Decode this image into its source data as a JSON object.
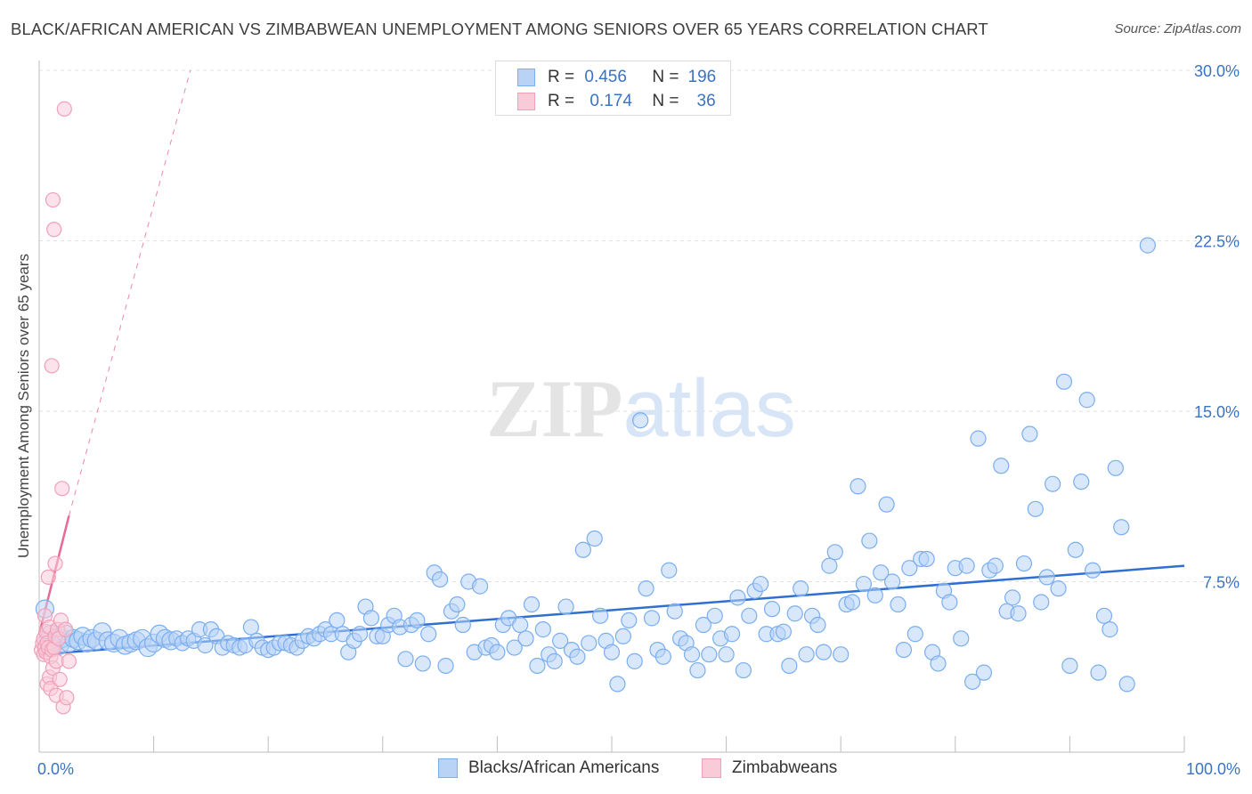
{
  "chart_data": {
    "type": "scatter",
    "title": "BLACK/AFRICAN AMERICAN VS ZIMBABWEAN UNEMPLOYMENT AMONG SENIORS OVER 65 YEARS CORRELATION CHART",
    "source": "Source: ZipAtlas.com",
    "xlabel": "",
    "ylabel": "Unemployment Among Seniors over 65 years",
    "xlim": [
      0,
      100
    ],
    "ylim": [
      0,
      30
    ],
    "x_tick_labels": [
      "0.0%",
      "100.0%"
    ],
    "y_ticks": [
      7.5,
      15.0,
      22.5,
      30.0
    ],
    "y_tick_labels": [
      "7.5%",
      "15.0%",
      "22.5%",
      "30.0%"
    ],
    "grid": true,
    "watermark": "ZIPatlas",
    "legend": {
      "placement": "top-center",
      "entries": [
        {
          "series": "Blacks/African Americans",
          "r_label": "R =",
          "r_value": "0.456",
          "n_label": "N =",
          "n_value": "196"
        },
        {
          "series": "Zimbabweans",
          "r_label": "R =",
          "r_value": "0.174",
          "n_label": "N =",
          "n_value": "36"
        }
      ]
    },
    "series": [
      {
        "name": "Blacks/African Americans",
        "color": "#7aaef0",
        "fill": "#b8d3f5",
        "trend": {
          "x": [
            0,
            100
          ],
          "y": [
            4.3,
            8.2
          ],
          "color": "#2f6fd1"
        },
        "points": [
          [
            0.5,
            6.3
          ],
          [
            0.8,
            4.9
          ],
          [
            1.0,
            5.2
          ],
          [
            1.2,
            4.8
          ],
          [
            1.5,
            5.0
          ],
          [
            1.8,
            4.7
          ],
          [
            2.0,
            5.0
          ],
          [
            2.3,
            5.2
          ],
          [
            2.6,
            4.8
          ],
          [
            3.0,
            5.0
          ],
          [
            3.4,
            4.9
          ],
          [
            3.8,
            5.1
          ],
          [
            4.2,
            4.8
          ],
          [
            4.6,
            5.0
          ],
          [
            5.0,
            4.9
          ],
          [
            5.5,
            5.3
          ],
          [
            6.0,
            4.9
          ],
          [
            6.5,
            4.8
          ],
          [
            7.0,
            5.0
          ],
          [
            7.5,
            4.7
          ],
          [
            8.0,
            4.8
          ],
          [
            8.5,
            4.9
          ],
          [
            9.0,
            5.0
          ],
          [
            9.5,
            4.6
          ],
          [
            10.0,
            4.8
          ],
          [
            10.5,
            5.2
          ],
          [
            11.0,
            5.0
          ],
          [
            11.5,
            4.9
          ],
          [
            12.0,
            5.0
          ],
          [
            12.5,
            4.8
          ],
          [
            13.0,
            5.0
          ],
          [
            13.5,
            4.9
          ],
          [
            14.0,
            5.4
          ],
          [
            14.5,
            4.7
          ],
          [
            15.0,
            5.4
          ],
          [
            15.5,
            5.1
          ],
          [
            16.0,
            4.6
          ],
          [
            16.5,
            4.8
          ],
          [
            17.0,
            4.7
          ],
          [
            17.5,
            4.6
          ],
          [
            18.0,
            4.7
          ],
          [
            18.5,
            5.5
          ],
          [
            19.0,
            4.9
          ],
          [
            19.5,
            4.6
          ],
          [
            20.0,
            4.5
          ],
          [
            20.5,
            4.6
          ],
          [
            21.0,
            4.8
          ],
          [
            21.5,
            4.8
          ],
          [
            22.0,
            4.7
          ],
          [
            22.5,
            4.6
          ],
          [
            23.0,
            4.9
          ],
          [
            23.5,
            5.1
          ],
          [
            24.0,
            5.0
          ],
          [
            24.5,
            5.2
          ],
          [
            25.0,
            5.4
          ],
          [
            25.5,
            5.2
          ],
          [
            26.0,
            5.8
          ],
          [
            26.5,
            5.2
          ],
          [
            27.0,
            4.4
          ],
          [
            27.5,
            4.9
          ],
          [
            28.0,
            5.2
          ],
          [
            28.5,
            6.4
          ],
          [
            29.0,
            5.9
          ],
          [
            29.5,
            5.1
          ],
          [
            30.0,
            5.1
          ],
          [
            30.5,
            5.6
          ],
          [
            31.0,
            6.0
          ],
          [
            31.5,
            5.5
          ],
          [
            32.0,
            4.1
          ],
          [
            32.5,
            5.6
          ],
          [
            33.0,
            5.8
          ],
          [
            33.5,
            3.9
          ],
          [
            34.0,
            5.2
          ],
          [
            34.5,
            7.9
          ],
          [
            35.0,
            7.6
          ],
          [
            35.5,
            3.8
          ],
          [
            36.0,
            6.2
          ],
          [
            36.5,
            6.5
          ],
          [
            37.0,
            5.6
          ],
          [
            37.5,
            7.5
          ],
          [
            38.0,
            4.4
          ],
          [
            38.5,
            7.3
          ],
          [
            39.0,
            4.6
          ],
          [
            39.5,
            4.7
          ],
          [
            40.0,
            4.4
          ],
          [
            40.5,
            5.6
          ],
          [
            41.0,
            5.9
          ],
          [
            41.5,
            4.6
          ],
          [
            42.0,
            5.6
          ],
          [
            42.5,
            5.0
          ],
          [
            43.0,
            6.5
          ],
          [
            43.5,
            3.8
          ],
          [
            44.0,
            5.4
          ],
          [
            44.5,
            4.3
          ],
          [
            45.0,
            4.0
          ],
          [
            45.5,
            4.9
          ],
          [
            46.0,
            6.4
          ],
          [
            46.5,
            4.5
          ],
          [
            47.0,
            4.2
          ],
          [
            47.5,
            8.9
          ],
          [
            48.0,
            4.8
          ],
          [
            48.5,
            9.4
          ],
          [
            49.0,
            6.0
          ],
          [
            49.5,
            4.9
          ],
          [
            50.0,
            4.4
          ],
          [
            50.5,
            3.0
          ],
          [
            51.0,
            5.1
          ],
          [
            51.5,
            5.8
          ],
          [
            52.0,
            4.0
          ],
          [
            52.5,
            14.6
          ],
          [
            53.0,
            7.2
          ],
          [
            53.5,
            5.9
          ],
          [
            54.0,
            4.5
          ],
          [
            54.5,
            4.2
          ],
          [
            55.0,
            8.0
          ],
          [
            55.5,
            6.2
          ],
          [
            56.0,
            5.0
          ],
          [
            56.5,
            4.8
          ],
          [
            57.0,
            4.3
          ],
          [
            57.5,
            3.6
          ],
          [
            58.0,
            5.6
          ],
          [
            58.5,
            4.3
          ],
          [
            59.0,
            6.0
          ],
          [
            59.5,
            5.0
          ],
          [
            60.0,
            4.3
          ],
          [
            60.5,
            5.2
          ],
          [
            61.0,
            6.8
          ],
          [
            61.5,
            3.6
          ],
          [
            62.0,
            6.0
          ],
          [
            62.5,
            7.1
          ],
          [
            63.0,
            7.4
          ],
          [
            63.5,
            5.2
          ],
          [
            64.0,
            6.3
          ],
          [
            64.5,
            5.2
          ],
          [
            65.0,
            5.3
          ],
          [
            65.5,
            3.8
          ],
          [
            66.0,
            6.1
          ],
          [
            66.5,
            7.2
          ],
          [
            67.0,
            4.3
          ],
          [
            67.5,
            6.0
          ],
          [
            68.0,
            5.6
          ],
          [
            68.5,
            4.4
          ],
          [
            69.0,
            8.2
          ],
          [
            69.5,
            8.8
          ],
          [
            70.0,
            4.3
          ],
          [
            70.5,
            6.5
          ],
          [
            71.0,
            6.6
          ],
          [
            71.5,
            11.7
          ],
          [
            72.0,
            7.4
          ],
          [
            72.5,
            9.3
          ],
          [
            73.0,
            6.9
          ],
          [
            73.5,
            7.9
          ],
          [
            74.0,
            10.9
          ],
          [
            74.5,
            7.5
          ],
          [
            75.0,
            6.5
          ],
          [
            75.5,
            4.5
          ],
          [
            76.0,
            8.1
          ],
          [
            76.5,
            5.2
          ],
          [
            77.0,
            8.5
          ],
          [
            77.5,
            8.5
          ],
          [
            78.0,
            4.4
          ],
          [
            78.5,
            3.9
          ],
          [
            79.0,
            7.1
          ],
          [
            79.5,
            6.6
          ],
          [
            80.0,
            8.1
          ],
          [
            80.5,
            5.0
          ],
          [
            81.0,
            8.2
          ],
          [
            81.5,
            3.1
          ],
          [
            82.0,
            13.8
          ],
          [
            82.5,
            3.5
          ],
          [
            83.0,
            8.0
          ],
          [
            83.5,
            8.2
          ],
          [
            84.0,
            12.6
          ],
          [
            84.5,
            6.2
          ],
          [
            85.0,
            6.8
          ],
          [
            85.5,
            6.1
          ],
          [
            86.0,
            8.3
          ],
          [
            86.5,
            14.0
          ],
          [
            87.0,
            10.7
          ],
          [
            87.5,
            6.6
          ],
          [
            88.0,
            7.7
          ],
          [
            88.5,
            11.8
          ],
          [
            89.0,
            7.2
          ],
          [
            89.5,
            16.3
          ],
          [
            90.0,
            3.8
          ],
          [
            90.5,
            8.9
          ],
          [
            91.0,
            11.9
          ],
          [
            91.5,
            15.5
          ],
          [
            92.0,
            8.0
          ],
          [
            92.5,
            3.5
          ],
          [
            93.0,
            6.0
          ],
          [
            93.5,
            5.4
          ],
          [
            94.0,
            12.5
          ],
          [
            94.5,
            9.9
          ],
          [
            95.0,
            3.0
          ],
          [
            96.8,
            22.3
          ]
        ]
      },
      {
        "name": "Zimbabweans",
        "color": "#f0a0b8",
        "fill": "#f9cad8",
        "trend": {
          "x": [
            0,
            2.6
          ],
          "y": [
            5.2,
            10.4
          ],
          "color": "#e86a92",
          "dashed_extension_to": [
            13.2,
            30.0
          ]
        },
        "points": [
          [
            0.2,
            4.5
          ],
          [
            0.3,
            4.8
          ],
          [
            0.4,
            5.0
          ],
          [
            0.4,
            4.3
          ],
          [
            0.5,
            4.6
          ],
          [
            0.5,
            6.0
          ],
          [
            0.6,
            4.4
          ],
          [
            0.6,
            5.3
          ],
          [
            0.7,
            4.8
          ],
          [
            0.7,
            3.0
          ],
          [
            0.8,
            7.7
          ],
          [
            0.8,
            4.6
          ],
          [
            0.9,
            3.3
          ],
          [
            0.9,
            5.5
          ],
          [
            1.0,
            2.8
          ],
          [
            1.0,
            4.2
          ],
          [
            1.1,
            17.0
          ],
          [
            1.1,
            4.5
          ],
          [
            1.2,
            24.3
          ],
          [
            1.2,
            3.7
          ],
          [
            1.3,
            23.0
          ],
          [
            1.3,
            4.6
          ],
          [
            1.4,
            5.1
          ],
          [
            1.4,
            8.3
          ],
          [
            1.5,
            2.5
          ],
          [
            1.5,
            4.0
          ],
          [
            1.6,
            5.4
          ],
          [
            1.7,
            5.0
          ],
          [
            1.8,
            3.2
          ],
          [
            1.9,
            5.8
          ],
          [
            2.0,
            11.6
          ],
          [
            2.1,
            2.0
          ],
          [
            2.3,
            5.4
          ],
          [
            2.4,
            2.4
          ],
          [
            2.6,
            4.0
          ],
          [
            2.2,
            28.3
          ]
        ]
      }
    ]
  }
}
